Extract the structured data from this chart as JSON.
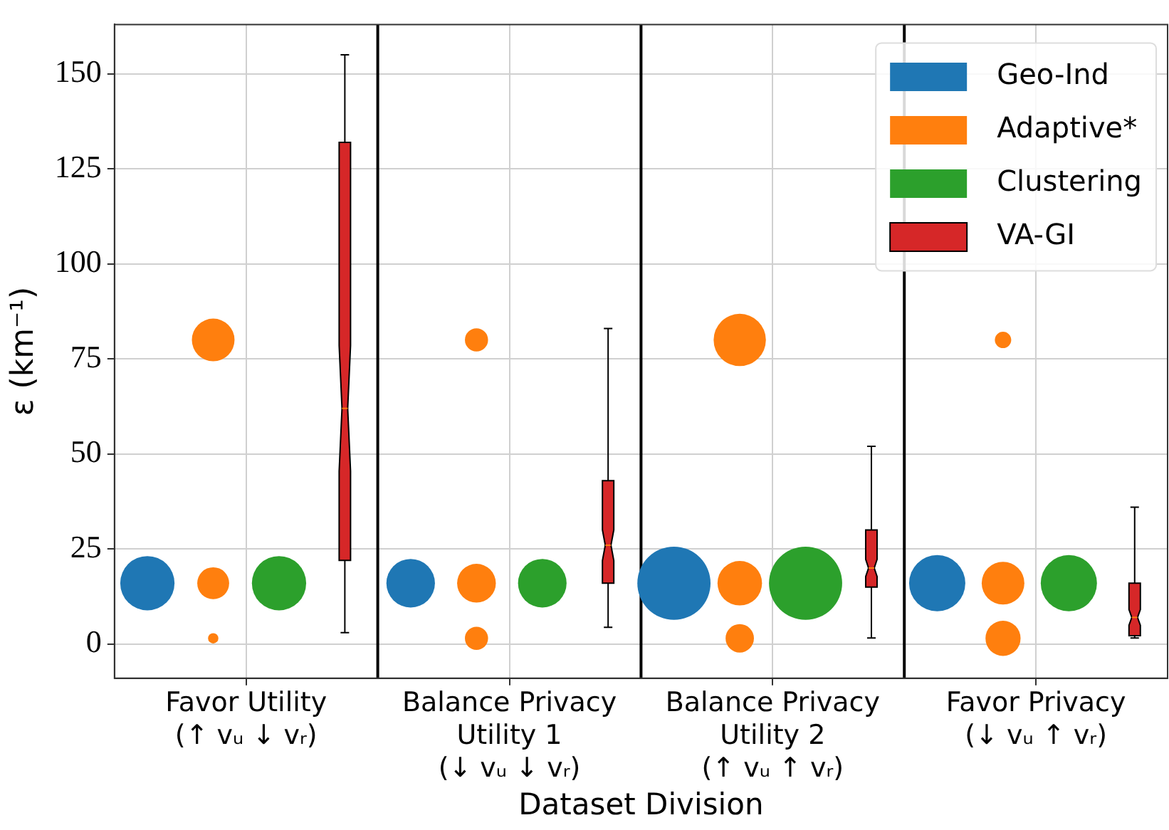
{
  "chart_data": {
    "type": "bubble",
    "xlabel": "Dataset Division",
    "ylabel": "ε (km⁻¹)",
    "categories": [
      "Favor Utility\n(↑ vᵤ ↓ vᵣ)",
      "Balance Privacy\nUtility 1\n(↓ vᵤ ↓ vᵣ)",
      "Balance Privacy\nUtility 2\n(↑ vᵤ ↑ vᵣ)",
      "Favor Privacy\n(↓ vᵤ ↑ vᵣ)"
    ],
    "ylim": [
      -9,
      163
    ],
    "yticks": [
      0,
      25,
      50,
      75,
      100,
      125,
      150
    ],
    "grid": true,
    "legend": "top right",
    "series": [
      {
        "name": "Geo-Ind",
        "color": "#1f77b4",
        "x": [
          "Favor Utility\n(↑ vᵤ ↓ vᵣ)",
          "Balance Privacy\nUtility 1\n(↓ vᵤ ↓ vᵣ)",
          "Balance Privacy\nUtility 2\n(↑ vᵤ ↑ vᵣ)",
          "Favor Privacy\n(↓ vᵤ ↑ vᵣ)"
        ],
        "values": [
          16,
          16,
          16,
          16
        ],
        "sizes": [
          0.55,
          0.44,
          1,
          0.59
        ]
      },
      {
        "name": "Adaptive*",
        "color": "#ff7f0e",
        "x": [
          "Favor Utility\n(↑ vᵤ ↓ vᵣ)",
          "Favor Utility\n(↑ vᵤ ↓ vᵣ)",
          "Favor Utility\n(↑ vᵤ ↓ vᵣ)",
          "Balance Privacy\nUtility 1\n(↓ vᵤ ↓ vᵣ)",
          "Balance Privacy\nUtility 1\n(↓ vᵤ ↓ vᵣ)",
          "Balance Privacy\nUtility 1\n(↓ vᵤ ↓ vᵣ)",
          "Balance Privacy\nUtility 2\n(↑ vᵤ ↑ vᵣ)",
          "Balance Privacy\nUtility 2\n(↑ vᵤ ↑ vᵣ)",
          "Balance Privacy\nUtility 2\n(↑ vᵤ ↑ vᵣ)",
          "Favor Privacy\n(↓ vᵤ ↑ vᵣ)",
          "Favor Privacy\n(↓ vᵤ ↑ vᵣ)",
          "Favor Privacy\n(↓ vᵤ ↑ vᵣ)"
        ],
        "values": [
          80,
          16,
          1.5,
          80,
          16,
          1.5,
          80,
          16,
          1.5,
          80,
          16,
          1.5
        ],
        "sizes": [
          0.34,
          0.19,
          0.02,
          0.1,
          0.28,
          0.1,
          0.51,
          0.37,
          0.15,
          0.05,
          0.34,
          0.23
        ]
      },
      {
        "name": "Clustering",
        "color": "#2ca02c",
        "x": [
          "Favor Utility\n(↑ vᵤ ↓ vᵣ)",
          "Balance Privacy\nUtility 1\n(↓ vᵤ ↓ vᵣ)",
          "Balance Privacy\nUtility 2\n(↑ vᵤ ↑ vᵣ)",
          "Favor Privacy\n(↓ vᵤ ↑ vᵣ)"
        ],
        "values": [
          16,
          16,
          16,
          16
        ],
        "sizes": [
          0.55,
          0.44,
          1,
          0.59
        ]
      },
      {
        "name": "VA-GI",
        "type": "box",
        "color": "#d62728",
        "boxes": [
          {
            "low": 3,
            "q1": 22,
            "median": 62,
            "q3": 132,
            "high": 155
          },
          {
            "low": 4.4,
            "q1": 16,
            "median": 26,
            "q3": 43,
            "high": 83
          },
          {
            "low": 1.6,
            "q1": 15,
            "median": 20,
            "q3": 30,
            "high": 52
          },
          {
            "low": 1.6,
            "q1": 2.2,
            "median": 7,
            "q3": 16,
            "high": 36
          }
        ]
      }
    ]
  }
}
